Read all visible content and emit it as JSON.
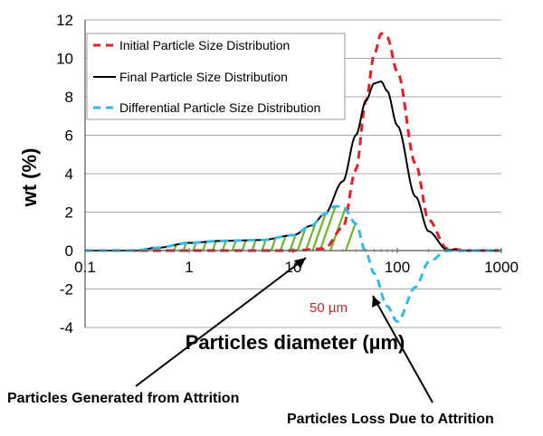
{
  "chart_data": {
    "type": "line",
    "xlabel": "Particles diameter (µm)",
    "ylabel": "wt (%)",
    "x_scale": "log",
    "xlim": [
      0.1,
      1000
    ],
    "ylim": [
      -4,
      12
    ],
    "x_ticks": [
      "0.1",
      "1",
      "10",
      "100",
      "1000"
    ],
    "y_ticks": [
      "-4",
      "-2",
      "0",
      "2",
      "4",
      "6",
      "8",
      "10",
      "12"
    ],
    "grid": "horizontal",
    "legend_position": "top-left",
    "series": [
      {
        "name": "Initial Particle Size Distribution",
        "color": "#e0202a",
        "style": "dashed",
        "x": [
          0.1,
          1,
          10,
          20,
          30,
          40,
          50,
          60,
          70,
          80,
          100,
          150,
          200,
          300,
          500,
          1000
        ],
        "y": [
          0,
          0,
          0,
          0.1,
          1.2,
          4.2,
          7.8,
          10.2,
          11.3,
          11.1,
          9.3,
          4.5,
          1.6,
          0.1,
          0,
          0
        ]
      },
      {
        "name": "Final Particle Size Distribution",
        "color": "#000000",
        "style": "solid",
        "x": [
          0.1,
          0.3,
          0.5,
          1,
          2,
          5,
          10,
          15,
          20,
          30,
          40,
          50,
          60,
          70,
          80,
          100,
          150,
          200,
          300,
          500,
          1000
        ],
        "y": [
          0,
          0,
          0.15,
          0.4,
          0.5,
          0.55,
          0.8,
          1.3,
          1.9,
          3.6,
          6.0,
          7.8,
          8.7,
          8.8,
          8.3,
          6.5,
          2.8,
          1.0,
          0.05,
          0,
          0
        ]
      },
      {
        "name": "Differential Particle Size Distribution",
        "color": "#33b8e8",
        "style": "dashed",
        "x": [
          0.1,
          0.3,
          0.5,
          1,
          2,
          5,
          10,
          15,
          20,
          25,
          30,
          40,
          50,
          60,
          80,
          100,
          150,
          200,
          300,
          500,
          1000
        ],
        "y": [
          0,
          0,
          0.15,
          0.4,
          0.5,
          0.55,
          0.8,
          1.3,
          1.9,
          2.3,
          2.3,
          1.4,
          -0.1,
          -1.2,
          -2.9,
          -3.7,
          -1.9,
          -0.6,
          0,
          0,
          0
        ]
      }
    ],
    "annotations": {
      "marker_label": "50 µm",
      "marker_color": "#c8262e",
      "generated_label": "Particles Generated from Attrition",
      "loss_label": "Particles Loss Due to Attrition",
      "hatch_color": "#6cb52d"
    }
  }
}
